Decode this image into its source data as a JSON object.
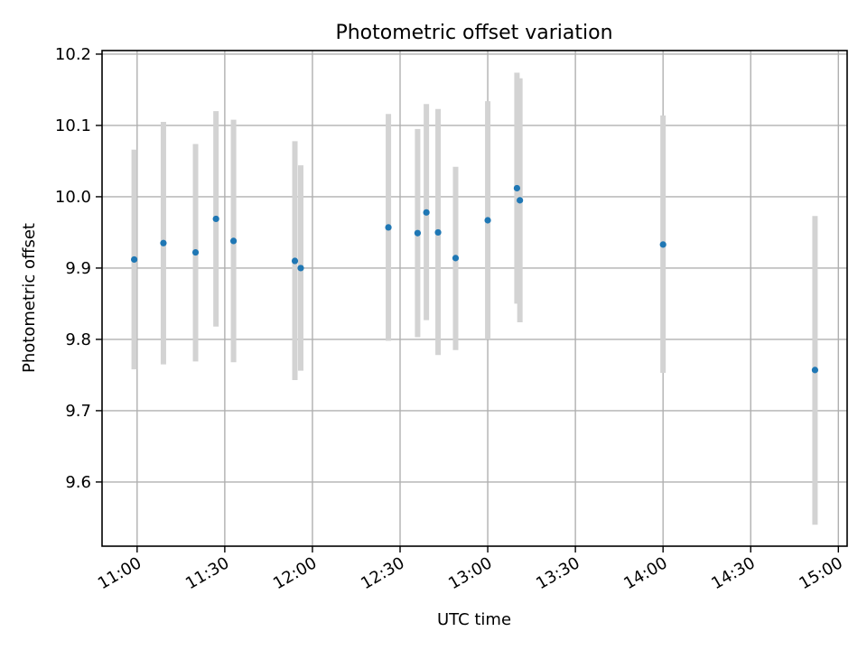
{
  "chart_data": {
    "type": "scatter",
    "title": "Photometric offset variation",
    "xlabel": "UTC time",
    "ylabel": "Photometric offset",
    "xlim": [
      "10:48",
      "15:03"
    ],
    "ylim": [
      9.51,
      10.205
    ],
    "x_ticks": [
      "11:00",
      "11:30",
      "12:00",
      "12:30",
      "13:00",
      "13:30",
      "14:00",
      "14:30",
      "15:00"
    ],
    "y_ticks": [
      9.6,
      9.7,
      9.8,
      9.9,
      10.0,
      10.1,
      10.2
    ],
    "y_tick_labels": [
      "9.6",
      "9.7",
      "9.8",
      "9.9",
      "10.0",
      "10.1",
      "10.2"
    ],
    "grid": true,
    "marker_color": "#1f77b4",
    "errorbar_color": "#d3d3d3",
    "points": [
      {
        "x": "10:59",
        "y": 9.912,
        "low": 9.758,
        "high": 10.066
      },
      {
        "x": "11:09",
        "y": 9.935,
        "low": 9.765,
        "high": 10.105
      },
      {
        "x": "11:20",
        "y": 9.922,
        "low": 9.769,
        "high": 10.074
      },
      {
        "x": "11:27",
        "y": 9.969,
        "low": 9.818,
        "high": 10.12
      },
      {
        "x": "11:33",
        "y": 9.938,
        "low": 9.768,
        "high": 10.108
      },
      {
        "x": "11:54",
        "y": 9.91,
        "low": 9.743,
        "high": 10.078
      },
      {
        "x": "11:56",
        "y": 9.9,
        "low": 9.756,
        "high": 10.044
      },
      {
        "x": "12:26",
        "y": 9.957,
        "low": 9.798,
        "high": 10.116
      },
      {
        "x": "12:36",
        "y": 9.949,
        "low": 9.803,
        "high": 10.095
      },
      {
        "x": "12:39",
        "y": 9.978,
        "low": 9.827,
        "high": 10.13
      },
      {
        "x": "12:43",
        "y": 9.95,
        "low": 9.778,
        "high": 10.123
      },
      {
        "x": "12:49",
        "y": 9.914,
        "low": 9.785,
        "high": 10.042
      },
      {
        "x": "13:00",
        "y": 9.967,
        "low": 9.8,
        "high": 10.134
      },
      {
        "x": "13:10",
        "y": 10.012,
        "low": 9.85,
        "high": 10.174
      },
      {
        "x": "13:11",
        "y": 9.995,
        "low": 9.824,
        "high": 10.166
      },
      {
        "x": "14:00",
        "y": 9.933,
        "low": 9.753,
        "high": 10.114
      },
      {
        "x": "14:52",
        "y": 9.757,
        "low": 9.54,
        "high": 9.973
      }
    ]
  }
}
